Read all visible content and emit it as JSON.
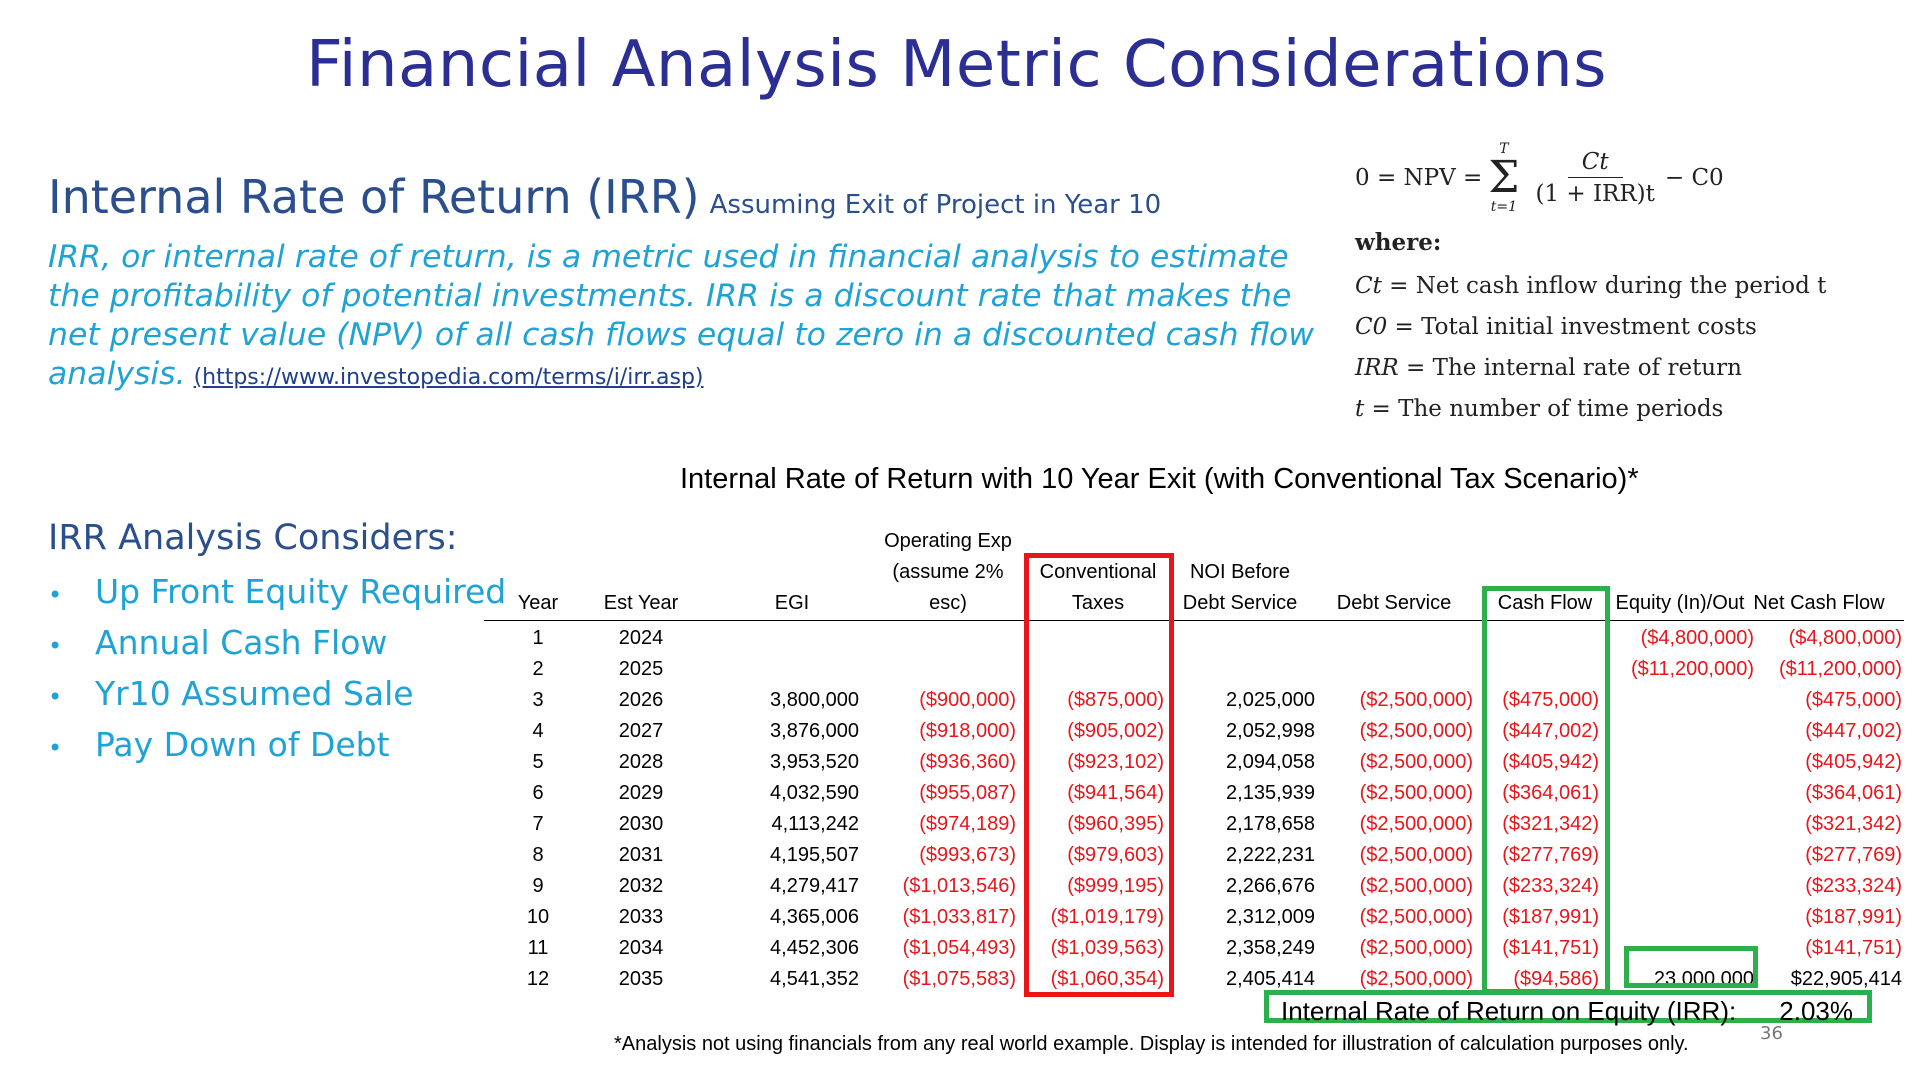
{
  "title": "Financial Analysis Metric Considerations",
  "irr": {
    "heading": "Internal Rate of Return (IRR)",
    "subheading": "Assuming Exit of Project in Year 10",
    "description": "IRR, or internal rate of return, is a metric used in financial analysis to estimate the profitability of potential investments. IRR is a discount rate that makes the net present value (NPV) of all cash flows equal to zero in a discounted cash flow analysis.",
    "link_text": "(https://www.investopedia.com/terms/i/irr.asp)"
  },
  "formula": {
    "lhs": "0 = NPV =",
    "sum_top": "T",
    "sum_bottom": "t=1",
    "numerator": "Ct",
    "denominator": "(1 + IRR)t",
    "tail": "− C0",
    "where": "where:",
    "definitions": [
      {
        "sym": "Ct",
        "text": " = Net cash inflow during the period t"
      },
      {
        "sym": "C0",
        "text": " = Total initial investment costs"
      },
      {
        "sym": "IRR",
        "text": " = The internal rate of return"
      },
      {
        "sym": "t",
        "text": " = The number of time periods"
      }
    ]
  },
  "considers": {
    "title": "IRR Analysis Considers:",
    "items": [
      "Up Front Equity Required",
      "Annual Cash Flow",
      "Yr10 Assumed Sale",
      "Pay Down of Debt"
    ]
  },
  "table": {
    "title": "Internal Rate of Return with 10 Year Exit (with Conventional Tax Scenario)*",
    "headers": {
      "year": "Year",
      "est_year": "Est Year",
      "egi": "EGI",
      "opex_1": "Operating Exp",
      "opex_2": "(assume 2%",
      "opex_3": "esc)",
      "tax_1": "Conventional",
      "tax_2": "Taxes",
      "noi_1": "NOI Before",
      "noi_2": "Debt Service",
      "debt": "Debt Service",
      "cash": "Cash Flow",
      "equity": "Equity (In)/Out",
      "net": "Net Cash Flow"
    },
    "rows": [
      {
        "year": "1",
        "est": "2024",
        "egi": "",
        "opex": "",
        "tax": "",
        "noi": "",
        "debt": "",
        "cash": "",
        "equity": "($4,800,000)",
        "net": "($4,800,000)"
      },
      {
        "year": "2",
        "est": "2025",
        "egi": "",
        "opex": "",
        "tax": "",
        "noi": "",
        "debt": "",
        "cash": "",
        "equity": "($11,200,000)",
        "net": "($11,200,000)"
      },
      {
        "year": "3",
        "est": "2026",
        "egi": "3,800,000",
        "opex": "($900,000)",
        "tax": "($875,000)",
        "noi": "2,025,000",
        "debt": "($2,500,000)",
        "cash": "($475,000)",
        "equity": "",
        "net": "($475,000)"
      },
      {
        "year": "4",
        "est": "2027",
        "egi": "3,876,000",
        "opex": "($918,000)",
        "tax": "($905,002)",
        "noi": "2,052,998",
        "debt": "($2,500,000)",
        "cash": "($447,002)",
        "equity": "",
        "net": "($447,002)"
      },
      {
        "year": "5",
        "est": "2028",
        "egi": "3,953,520",
        "opex": "($936,360)",
        "tax": "($923,102)",
        "noi": "2,094,058",
        "debt": "($2,500,000)",
        "cash": "($405,942)",
        "equity": "",
        "net": "($405,942)"
      },
      {
        "year": "6",
        "est": "2029",
        "egi": "4,032,590",
        "opex": "($955,087)",
        "tax": "($941,564)",
        "noi": "2,135,939",
        "debt": "($2,500,000)",
        "cash": "($364,061)",
        "equity": "",
        "net": "($364,061)"
      },
      {
        "year": "7",
        "est": "2030",
        "egi": "4,113,242",
        "opex": "($974,189)",
        "tax": "($960,395)",
        "noi": "2,178,658",
        "debt": "($2,500,000)",
        "cash": "($321,342)",
        "equity": "",
        "net": "($321,342)"
      },
      {
        "year": "8",
        "est": "2031",
        "egi": "4,195,507",
        "opex": "($993,673)",
        "tax": "($979,603)",
        "noi": "2,222,231",
        "debt": "($2,500,000)",
        "cash": "($277,769)",
        "equity": "",
        "net": "($277,769)"
      },
      {
        "year": "9",
        "est": "2032",
        "egi": "4,279,417",
        "opex": "($1,013,546)",
        "tax": "($999,195)",
        "noi": "2,266,676",
        "debt": "($2,500,000)",
        "cash": "($233,324)",
        "equity": "",
        "net": "($233,324)"
      },
      {
        "year": "10",
        "est": "2033",
        "egi": "4,365,006",
        "opex": "($1,033,817)",
        "tax": "($1,019,179)",
        "noi": "2,312,009",
        "debt": "($2,500,000)",
        "cash": "($187,991)",
        "equity": "",
        "net": "($187,991)"
      },
      {
        "year": "11",
        "est": "2034",
        "egi": "4,452,306",
        "opex": "($1,054,493)",
        "tax": "($1,039,563)",
        "noi": "2,358,249",
        "debt": "($2,500,000)",
        "cash": "($141,751)",
        "equity": "",
        "net": "($141,751)"
      },
      {
        "year": "12",
        "est": "2035",
        "egi": "4,541,352",
        "opex": "($1,075,583)",
        "tax": "($1,060,354)",
        "noi": "2,405,414",
        "debt": "($2,500,000)",
        "cash": "($94,586)",
        "equity": "23,000,000",
        "net": "$22,905,414"
      }
    ],
    "irr_label": "Internal Rate of Return on Equity (IRR):",
    "irr_value": "2.03%",
    "footnote": "*Analysis not using financials from any real world example. Display is intended for illustration of calculation purposes only.",
    "colors": {
      "negative": "#E8161B",
      "highlight_red": "#E8161B",
      "highlight_green": "#2DB04B"
    }
  },
  "page_number": "36"
}
